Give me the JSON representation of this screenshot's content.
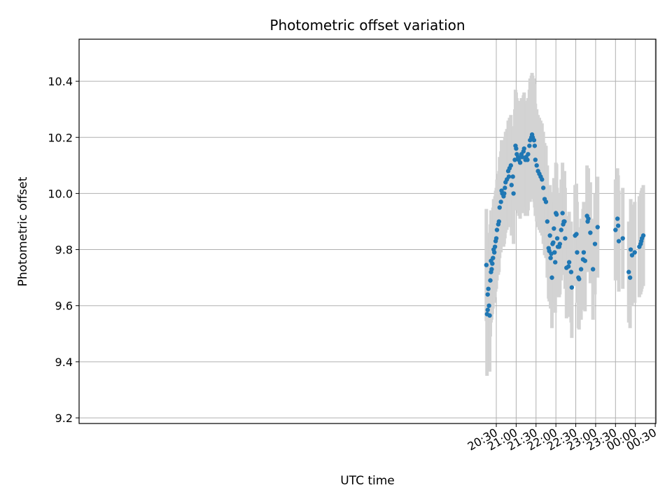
{
  "chart_data": {
    "type": "scatter",
    "title": "Photometric offset variation",
    "xlabel": "UTC time",
    "ylabel": "Photometric offset",
    "x_ticks": [
      "20:30",
      "21:00",
      "21:30",
      "22:00",
      "22:30",
      "23:00",
      "23:30",
      "00:00",
      "00:30"
    ],
    "y_ticks": [
      "9.2",
      "9.4",
      "9.6",
      "9.8",
      "10.0",
      "10.2",
      "10.4"
    ],
    "ylim": [
      9.18,
      10.55
    ],
    "grid": true,
    "colors": {
      "points": "#1f77b4",
      "errorbars": "#d3d3d3",
      "grid": "#b0b0b0"
    },
    "series": [
      {
        "x": [
          "20:15",
          "20:16",
          "20:17",
          "20:17",
          "20:18",
          "20:19",
          "20:20",
          "20:21",
          "20:22",
          "20:22",
          "20:23",
          "20:24",
          "20:25",
          "20:26",
          "20:27",
          "20:28",
          "20:29",
          "20:30",
          "20:31",
          "20:33",
          "20:34",
          "20:35",
          "20:37",
          "20:38",
          "20:39",
          "20:41",
          "20:42",
          "20:43",
          "20:44",
          "20:46",
          "20:48",
          "20:49",
          "20:50",
          "20:52",
          "20:53",
          "20:55",
          "20:56",
          "20:58",
          "20:59",
          "21:00",
          "21:01",
          "21:03",
          "21:04",
          "21:06",
          "21:08",
          "21:09",
          "21:11",
          "21:12",
          "21:14",
          "21:15",
          "21:17",
          "21:18",
          "21:20",
          "21:21",
          "21:23",
          "21:24",
          "21:25",
          "21:27",
          "21:28",
          "21:29",
          "21:31",
          "21:33",
          "21:35",
          "21:37",
          "21:39",
          "21:41",
          "21:43",
          "21:45",
          "21:47",
          "21:49",
          "21:50",
          "21:51",
          "21:52",
          "21:53",
          "21:54",
          "21:55",
          "21:56",
          "21:57",
          "21:58",
          "21:59",
          "22:00",
          "22:01",
          "22:02",
          "22:03",
          "22:05",
          "22:06",
          "22:08",
          "22:10",
          "22:11",
          "22:12",
          "22:13",
          "22:14",
          "22:16",
          "22:19",
          "22:20",
          "22:23",
          "22:24",
          "22:29",
          "22:31",
          "22:32",
          "22:34",
          "22:35",
          "22:38",
          "22:41",
          "22:42",
          "22:44",
          "22:47",
          "22:48",
          "22:49",
          "22:52",
          "22:56",
          "22:59",
          "23:03",
          "23:30",
          "23:33",
          "23:34",
          "23:35",
          "23:41",
          "23:50",
          "23:52",
          "23:53",
          "23:55",
          "23:59",
          "24:06",
          "24:08",
          "24:09",
          "24:10",
          "24:12"
        ],
        "y": [
          9.745,
          9.57,
          9.585,
          9.64,
          9.66,
          9.6,
          9.565,
          9.69,
          9.72,
          9.76,
          9.73,
          9.75,
          9.77,
          9.8,
          9.79,
          9.81,
          9.83,
          9.84,
          9.87,
          9.89,
          9.9,
          9.95,
          9.97,
          10.01,
          10.0,
          9.99,
          10.0,
          10.02,
          10.04,
          10.05,
          10.08,
          10.06,
          10.09,
          10.1,
          10.03,
          10.06,
          10.0,
          10.12,
          10.17,
          10.16,
          10.14,
          10.13,
          10.12,
          10.11,
          10.14,
          10.13,
          10.15,
          10.16,
          10.12,
          10.13,
          10.12,
          10.14,
          10.17,
          10.19,
          10.2,
          10.21,
          10.2,
          10.19,
          10.17,
          10.12,
          10.1,
          10.08,
          10.07,
          10.06,
          10.05,
          10.02,
          9.98,
          9.97,
          9.9,
          9.805,
          9.795,
          9.85,
          9.77,
          9.785,
          9.7,
          9.82,
          9.825,
          9.875,
          9.79,
          9.755,
          9.93,
          9.925,
          9.84,
          9.81,
          9.81,
          9.82,
          9.87,
          9.93,
          9.89,
          9.9,
          9.9,
          9.84,
          9.735,
          9.74,
          9.755,
          9.72,
          9.665,
          9.85,
          9.855,
          9.79,
          9.7,
          9.695,
          9.73,
          9.765,
          9.79,
          9.76,
          9.92,
          9.9,
          9.91,
          9.86,
          9.73,
          9.82,
          9.88,
          9.87,
          9.91,
          9.885,
          9.83,
          9.84,
          9.72,
          9.7,
          9.8,
          9.78,
          9.79,
          9.81,
          9.82,
          9.83,
          9.84,
          9.85
        ],
        "err": [
          0.2,
          0.22,
          0.2,
          0.2,
          0.2,
          0.2,
          0.2,
          0.2,
          0.18,
          0.18,
          0.18,
          0.18,
          0.18,
          0.18,
          0.18,
          0.18,
          0.18,
          0.18,
          0.18,
          0.18,
          0.18,
          0.18,
          0.18,
          0.18,
          0.18,
          0.18,
          0.18,
          0.18,
          0.18,
          0.18,
          0.18,
          0.18,
          0.18,
          0.18,
          0.18,
          0.18,
          0.18,
          0.18,
          0.2,
          0.2,
          0.2,
          0.2,
          0.2,
          0.2,
          0.2,
          0.2,
          0.2,
          0.2,
          0.2,
          0.2,
          0.2,
          0.2,
          0.2,
          0.22,
          0.22,
          0.22,
          0.22,
          0.22,
          0.22,
          0.2,
          0.2,
          0.2,
          0.2,
          0.2,
          0.2,
          0.2,
          0.2,
          0.2,
          0.2,
          0.18,
          0.18,
          0.18,
          0.18,
          0.18,
          0.18,
          0.18,
          0.18,
          0.18,
          0.18,
          0.18,
          0.18,
          0.18,
          0.18,
          0.18,
          0.18,
          0.18,
          0.18,
          0.18,
          0.18,
          0.18,
          0.18,
          0.18,
          0.18,
          0.18,
          0.18,
          0.18,
          0.18,
          0.18,
          0.18,
          0.18,
          0.18,
          0.18,
          0.18,
          0.18,
          0.18,
          0.18,
          0.18,
          0.18,
          0.18,
          0.18,
          0.18,
          0.18,
          0.18,
          0.18,
          0.18,
          0.18,
          0.18,
          0.18,
          0.18,
          0.18,
          0.18,
          0.18,
          0.18,
          0.18,
          0.18,
          0.18,
          0.18,
          0.18
        ]
      }
    ]
  }
}
